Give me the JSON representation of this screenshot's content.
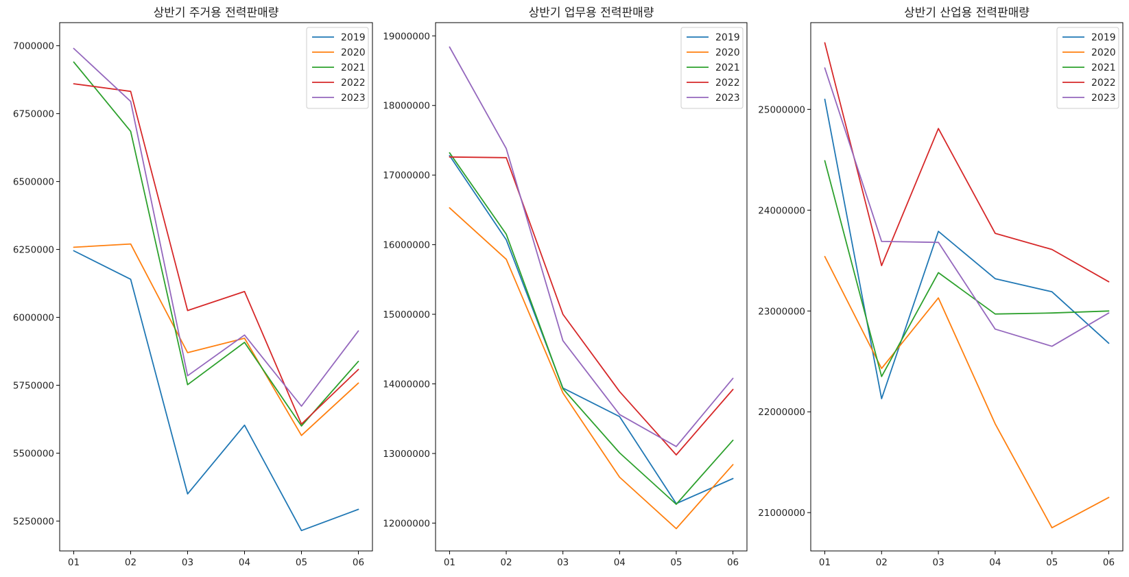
{
  "chart_data": [
    {
      "type": "line",
      "title": "상반기 주거용 전력판매량",
      "xlabel": "",
      "ylabel": "",
      "categories": [
        "01",
        "02",
        "03",
        "04",
        "05",
        "06"
      ],
      "ylim": [
        5140000,
        7085000
      ],
      "yticks": [
        5250000,
        5500000,
        5750000,
        6000000,
        6250000,
        6500000,
        6750000,
        7000000
      ],
      "ytick_labels": [
        "5250000",
        "5500000",
        "5750000",
        "6000000",
        "6250000",
        "6500000",
        "6750000",
        "7000000"
      ],
      "legend": "top-right",
      "grid": false,
      "series": [
        {
          "name": "2019",
          "color": "#1f77b4",
          "values": [
            6245000,
            6140000,
            5350000,
            5603000,
            5215000,
            5293000
          ]
        },
        {
          "name": "2020",
          "color": "#ff7f0e",
          "values": [
            6258000,
            6270000,
            5870000,
            5923000,
            5565000,
            5758000
          ]
        },
        {
          "name": "2021",
          "color": "#2ca02c",
          "values": [
            6940000,
            6685000,
            5752000,
            5908000,
            5600000,
            5838000
          ]
        },
        {
          "name": "2022",
          "color": "#d62728",
          "values": [
            6860000,
            6832000,
            6025000,
            6095000,
            5607000,
            5808000
          ]
        },
        {
          "name": "2023",
          "color": "#9467bd",
          "values": [
            6990000,
            6795000,
            5785000,
            5935000,
            5673000,
            5950000
          ]
        }
      ]
    },
    {
      "type": "line",
      "title": "상반기 업무용 전력판매량",
      "xlabel": "",
      "ylabel": "",
      "categories": [
        "01",
        "02",
        "03",
        "04",
        "05",
        "06"
      ],
      "ylim": [
        11600000,
        19190000
      ],
      "yticks": [
        12000000,
        13000000,
        14000000,
        15000000,
        16000000,
        17000000,
        18000000,
        19000000
      ],
      "ytick_labels": [
        "12000000",
        "13000000",
        "14000000",
        "15000000",
        "16000000",
        "17000000",
        "18000000",
        "19000000"
      ],
      "legend": "top-right",
      "grid": false,
      "series": [
        {
          "name": "2019",
          "color": "#1f77b4",
          "values": [
            17280000,
            16070000,
            13940000,
            13530000,
            12280000,
            12640000
          ]
        },
        {
          "name": "2020",
          "color": "#ff7f0e",
          "values": [
            16530000,
            15790000,
            13870000,
            12660000,
            11920000,
            12840000
          ]
        },
        {
          "name": "2021",
          "color": "#2ca02c",
          "values": [
            17320000,
            16150000,
            13930000,
            13010000,
            12270000,
            13190000
          ]
        },
        {
          "name": "2022",
          "color": "#d62728",
          "values": [
            17260000,
            17250000,
            15000000,
            13890000,
            12980000,
            13920000
          ]
        },
        {
          "name": "2023",
          "color": "#9467bd",
          "values": [
            18840000,
            17380000,
            14620000,
            13560000,
            13100000,
            14080000
          ]
        }
      ]
    },
    {
      "type": "line",
      "title": "상반기 산업용 전력판매량",
      "xlabel": "",
      "ylabel": "",
      "categories": [
        "01",
        "02",
        "03",
        "04",
        "05",
        "06"
      ],
      "ylim": [
        20620000,
        25860000
      ],
      "yticks": [
        21000000,
        22000000,
        23000000,
        24000000,
        25000000
      ],
      "ytick_labels": [
        "21000000",
        "22000000",
        "23000000",
        "24000000",
        "25000000"
      ],
      "legend": "top-right",
      "grid": false,
      "series": [
        {
          "name": "2019",
          "color": "#1f77b4",
          "values": [
            25100000,
            22130000,
            23790000,
            23320000,
            23190000,
            22680000
          ]
        },
        {
          "name": "2020",
          "color": "#ff7f0e",
          "values": [
            23540000,
            22430000,
            23130000,
            21880000,
            20850000,
            21150000
          ]
        },
        {
          "name": "2021",
          "color": "#2ca02c",
          "values": [
            24490000,
            22350000,
            23380000,
            22970000,
            22980000,
            23000000
          ]
        },
        {
          "name": "2022",
          "color": "#d62728",
          "values": [
            25660000,
            23450000,
            24810000,
            23770000,
            23610000,
            23290000
          ]
        },
        {
          "name": "2023",
          "color": "#9467bd",
          "values": [
            25410000,
            23690000,
            23680000,
            22820000,
            22650000,
            22980000
          ]
        }
      ]
    }
  ]
}
